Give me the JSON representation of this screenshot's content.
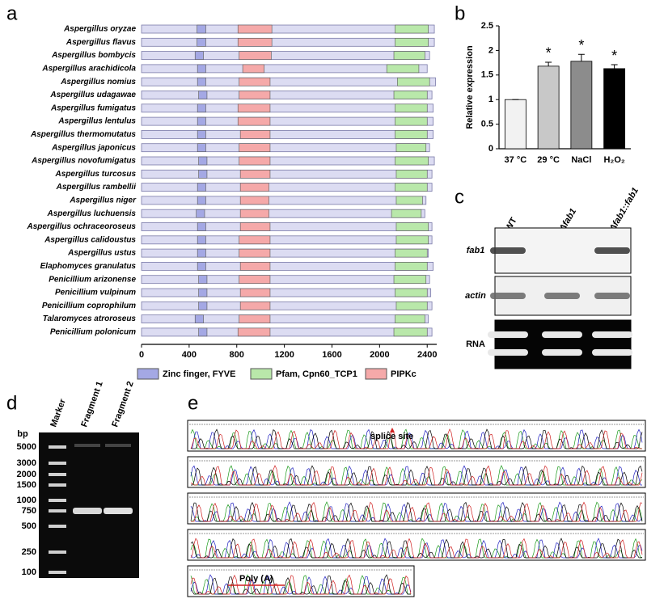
{
  "panel_labels": [
    "a",
    "b",
    "c",
    "d",
    "e"
  ],
  "chart_data": [
    {
      "type": "domain",
      "species": [
        "Aspergillus oryzae",
        "Aspergillus flavus",
        "Aspergillus bombycis",
        "Aspergillus arachidicola",
        "Aspergillus nomius",
        "Aspergillus udagawae",
        "Aspergillus fumigatus",
        "Aspergillus lentulus",
        "Aspergillus thermomutatus",
        "Aspergillus japonicus",
        "Aspergillus novofumigatus",
        "Aspergillus turcosus",
        "Aspergillus rambellii",
        "Aspergillus niger",
        "Aspergillus luchuensis",
        "Aspergillus ochraceoroseus",
        "Aspergillus calidoustus",
        "Aspergillus ustus",
        "Elaphomyces granulatus",
        "Penicillium arizonense",
        "Penicillium vulpinum",
        "Penicillium coprophilum",
        "Talaromyces atroroseus",
        "Penicillium polonicum"
      ],
      "lengths": [
        2460,
        2460,
        2420,
        2400,
        2470,
        2440,
        2450,
        2450,
        2450,
        2420,
        2460,
        2440,
        2440,
        2390,
        2380,
        2440,
        2440,
        2410,
        2450,
        2420,
        2430,
        2440,
        2410,
        2440
      ],
      "base_color": "#dcdcf2",
      "series": [
        {
          "name": "Zinc finger, FYVE",
          "color": "#a4a8e4",
          "starts": [
            466,
            466,
            450,
            470,
            470,
            480,
            470,
            470,
            470,
            470,
            480,
            480,
            470,
            470,
            460,
            470,
            470,
            470,
            470,
            480,
            480,
            480,
            450,
            480
          ],
          "ends": [
            540,
            540,
            520,
            540,
            540,
            550,
            540,
            540,
            540,
            540,
            550,
            550,
            540,
            540,
            530,
            540,
            540,
            540,
            540,
            550,
            550,
            550,
            520,
            550
          ]
        },
        {
          "name": "Pfam, Cpn60_TCP1",
          "color": "#b9e8aa",
          "starts": [
            2130,
            2130,
            2120,
            2060,
            2150,
            2120,
            2130,
            2130,
            2130,
            2140,
            2130,
            2140,
            2130,
            2140,
            2100,
            2140,
            2140,
            2130,
            2130,
            2120,
            2130,
            2140,
            2130,
            2120
          ],
          "ends": [
            2410,
            2410,
            2380,
            2330,
            2420,
            2400,
            2400,
            2400,
            2400,
            2390,
            2410,
            2400,
            2400,
            2360,
            2350,
            2410,
            2410,
            2400,
            2400,
            2390,
            2400,
            2400,
            2380,
            2400
          ]
        },
        {
          "name": "PIPKc",
          "color": "#f5a9a9",
          "starts": [
            810,
            810,
            820,
            850,
            820,
            820,
            810,
            810,
            830,
            820,
            820,
            830,
            830,
            830,
            830,
            830,
            820,
            820,
            830,
            820,
            830,
            830,
            820,
            810
          ],
          "ends": [
            1095,
            1095,
            1090,
            1030,
            1080,
            1080,
            1080,
            1080,
            1080,
            1080,
            1080,
            1080,
            1070,
            1070,
            1070,
            1080,
            1080,
            1080,
            1080,
            1080,
            1080,
            1080,
            1080,
            1080
          ]
        }
      ],
      "xlim": [
        0,
        2480
      ],
      "xticks": [
        0,
        400,
        800,
        1200,
        1600,
        2000,
        2400
      ]
    },
    {
      "type": "bar",
      "ylabel": "Relative expression",
      "categories": [
        "37 °C",
        "29 °C",
        "NaCl",
        "H₂O₂"
      ],
      "values": [
        1,
        1.68,
        1.78,
        1.63
      ],
      "errors": [
        0,
        0.08,
        0.14,
        0.08
      ],
      "colors": [
        "#f2f2f2",
        "#c8c8c8",
        "#8c8c8c",
        "#000000"
      ],
      "significance": [
        null,
        "*",
        "*",
        "*"
      ],
      "ylim": [
        0,
        2.5
      ],
      "yticks": [
        0,
        0.5,
        1,
        1.5,
        2,
        2.5
      ]
    }
  ],
  "blot_c": {
    "lanes": [
      "WT",
      "Δfab1",
      "Δfab1::fab1"
    ],
    "rows": [
      "fab1",
      "actin",
      "RNA"
    ]
  },
  "gel_d": {
    "lanes": [
      "Marker",
      "Fragment 1",
      "Fragment 2"
    ],
    "unit": "bp",
    "ladder": [
      5000,
      3000,
      2000,
      1500,
      1000,
      750,
      500,
      250,
      100
    ]
  },
  "chromatogram_e": {
    "annotations": [
      "splice site",
      "Poly (A)"
    ]
  }
}
